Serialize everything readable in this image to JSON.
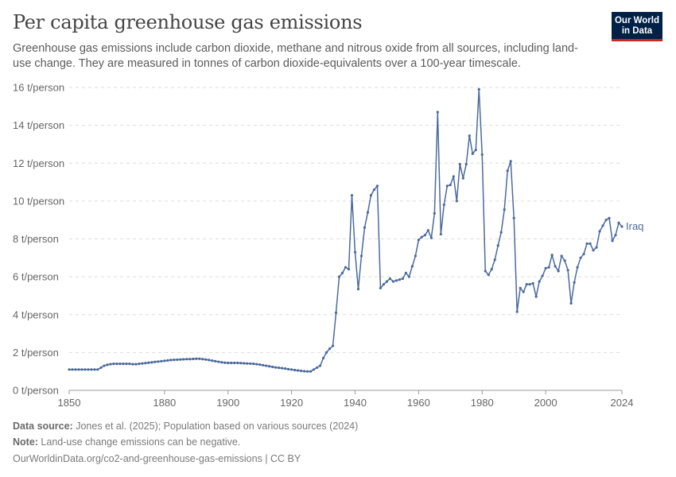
{
  "header": {
    "title": "Per capita greenhouse gas emissions",
    "subtitle": "Greenhouse gas emissions include carbon dioxide, methane and nitrous oxide from all sources, including land-use change. They are measured in tonnes of carbon dioxide-equivalents over a 100-year timescale."
  },
  "logo": {
    "line1": "Our World",
    "line2": "in Data",
    "bg": "#002147",
    "accent": "#ce261e"
  },
  "footer": {
    "source_label": "Data source:",
    "source_text": " Jones et al. (2025); Population based on various sources (2024)",
    "note_label": "Note:",
    "note_text": " Land-use change emissions can be negative.",
    "url": "OurWorldinData.org/co2-and-greenhouse-gas-emissions | CC BY"
  },
  "chart_data": {
    "type": "line",
    "xlabel": "",
    "ylabel": "",
    "xlim": [
      1850,
      2024
    ],
    "ylim": [
      0,
      16
    ],
    "x_ticks": [
      1850,
      1880,
      1900,
      1920,
      1940,
      1960,
      1980,
      2000,
      2024
    ],
    "y_ticks": [
      {
        "value": 0,
        "label": "0 t/person"
      },
      {
        "value": 2,
        "label": "2 t/person"
      },
      {
        "value": 4,
        "label": "4 t/person"
      },
      {
        "value": 6,
        "label": "6 t/person"
      },
      {
        "value": 8,
        "label": "8 t/person"
      },
      {
        "value": 10,
        "label": "10 t/person"
      },
      {
        "value": 12,
        "label": "12 t/person"
      },
      {
        "value": 14,
        "label": "14 t/person"
      },
      {
        "value": 16,
        "label": "16 t/person"
      }
    ],
    "grid": "horizontal dashed",
    "series": [
      {
        "name": "Iraq",
        "color": "#4c6a9c",
        "points": [
          [
            1850,
            1.1
          ],
          [
            1851,
            1.1
          ],
          [
            1852,
            1.1
          ],
          [
            1853,
            1.1
          ],
          [
            1854,
            1.1
          ],
          [
            1855,
            1.1
          ],
          [
            1856,
            1.1
          ],
          [
            1857,
            1.1
          ],
          [
            1858,
            1.1
          ],
          [
            1859,
            1.1
          ],
          [
            1860,
            1.2
          ],
          [
            1861,
            1.3
          ],
          [
            1862,
            1.35
          ],
          [
            1863,
            1.38
          ],
          [
            1864,
            1.4
          ],
          [
            1865,
            1.4
          ],
          [
            1866,
            1.4
          ],
          [
            1867,
            1.4
          ],
          [
            1868,
            1.4
          ],
          [
            1869,
            1.4
          ],
          [
            1870,
            1.38
          ],
          [
            1871,
            1.38
          ],
          [
            1872,
            1.4
          ],
          [
            1873,
            1.42
          ],
          [
            1874,
            1.44
          ],
          [
            1875,
            1.46
          ],
          [
            1876,
            1.48
          ],
          [
            1877,
            1.5
          ],
          [
            1878,
            1.52
          ],
          [
            1879,
            1.54
          ],
          [
            1880,
            1.56
          ],
          [
            1881,
            1.58
          ],
          [
            1882,
            1.6
          ],
          [
            1883,
            1.61
          ],
          [
            1884,
            1.62
          ],
          [
            1885,
            1.63
          ],
          [
            1886,
            1.64
          ],
          [
            1887,
            1.65
          ],
          [
            1888,
            1.65
          ],
          [
            1889,
            1.66
          ],
          [
            1890,
            1.67
          ],
          [
            1891,
            1.67
          ],
          [
            1892,
            1.65
          ],
          [
            1893,
            1.63
          ],
          [
            1894,
            1.6
          ],
          [
            1895,
            1.57
          ],
          [
            1896,
            1.54
          ],
          [
            1897,
            1.51
          ],
          [
            1898,
            1.48
          ],
          [
            1899,
            1.46
          ],
          [
            1900,
            1.45
          ],
          [
            1901,
            1.45
          ],
          [
            1902,
            1.45
          ],
          [
            1903,
            1.45
          ],
          [
            1904,
            1.44
          ],
          [
            1905,
            1.43
          ],
          [
            1906,
            1.42
          ],
          [
            1907,
            1.41
          ],
          [
            1908,
            1.4
          ],
          [
            1909,
            1.38
          ],
          [
            1910,
            1.36
          ],
          [
            1911,
            1.33
          ],
          [
            1912,
            1.3
          ],
          [
            1913,
            1.27
          ],
          [
            1914,
            1.24
          ],
          [
            1915,
            1.21
          ],
          [
            1916,
            1.19
          ],
          [
            1917,
            1.17
          ],
          [
            1918,
            1.15
          ],
          [
            1919,
            1.12
          ],
          [
            1920,
            1.1
          ],
          [
            1921,
            1.07
          ],
          [
            1922,
            1.05
          ],
          [
            1923,
            1.03
          ],
          [
            1924,
            1.01
          ],
          [
            1925,
            1.0
          ],
          [
            1926,
            1.0
          ],
          [
            1927,
            1.1
          ],
          [
            1928,
            1.2
          ],
          [
            1929,
            1.3
          ],
          [
            1930,
            1.7
          ],
          [
            1931,
            2.0
          ],
          [
            1932,
            2.2
          ],
          [
            1933,
            2.35
          ],
          [
            1934,
            4.1
          ],
          [
            1935,
            6.0
          ],
          [
            1936,
            6.2
          ],
          [
            1937,
            6.5
          ],
          [
            1938,
            6.4
          ],
          [
            1939,
            10.3
          ],
          [
            1940,
            7.3
          ],
          [
            1941,
            5.35
          ],
          [
            1942,
            7.1
          ],
          [
            1943,
            8.6
          ],
          [
            1944,
            9.4
          ],
          [
            1945,
            10.3
          ],
          [
            1946,
            10.6
          ],
          [
            1947,
            10.8
          ],
          [
            1948,
            5.4
          ],
          [
            1949,
            5.6
          ],
          [
            1950,
            5.75
          ],
          [
            1951,
            5.9
          ],
          [
            1952,
            5.75
          ],
          [
            1953,
            5.8
          ],
          [
            1954,
            5.85
          ],
          [
            1955,
            5.9
          ],
          [
            1956,
            6.2
          ],
          [
            1957,
            6.0
          ],
          [
            1958,
            6.55
          ],
          [
            1959,
            7.1
          ],
          [
            1960,
            7.95
          ],
          [
            1961,
            8.1
          ],
          [
            1962,
            8.2
          ],
          [
            1963,
            8.45
          ],
          [
            1964,
            8.05
          ],
          [
            1965,
            9.35
          ],
          [
            1966,
            14.7
          ],
          [
            1967,
            8.25
          ],
          [
            1968,
            9.8
          ],
          [
            1969,
            10.8
          ],
          [
            1970,
            10.85
          ],
          [
            1971,
            11.3
          ],
          [
            1972,
            10.0
          ],
          [
            1973,
            11.95
          ],
          [
            1974,
            11.2
          ],
          [
            1975,
            11.95
          ],
          [
            1976,
            13.45
          ],
          [
            1977,
            12.5
          ],
          [
            1978,
            12.7
          ],
          [
            1979,
            15.9
          ],
          [
            1980,
            12.45
          ],
          [
            1981,
            6.3
          ],
          [
            1982,
            6.1
          ],
          [
            1983,
            6.4
          ],
          [
            1984,
            6.9
          ],
          [
            1985,
            7.65
          ],
          [
            1986,
            8.35
          ],
          [
            1987,
            9.55
          ],
          [
            1988,
            11.6
          ],
          [
            1989,
            12.1
          ],
          [
            1990,
            9.1
          ],
          [
            1991,
            4.15
          ],
          [
            1992,
            5.4
          ],
          [
            1993,
            5.2
          ],
          [
            1994,
            5.6
          ],
          [
            1995,
            5.6
          ],
          [
            1996,
            5.65
          ],
          [
            1997,
            4.95
          ],
          [
            1998,
            5.75
          ],
          [
            1999,
            6.05
          ],
          [
            2000,
            6.45
          ],
          [
            2001,
            6.5
          ],
          [
            2002,
            7.15
          ],
          [
            2003,
            6.55
          ],
          [
            2004,
            6.3
          ],
          [
            2005,
            7.1
          ],
          [
            2006,
            6.85
          ],
          [
            2007,
            6.35
          ],
          [
            2008,
            4.6
          ],
          [
            2009,
            5.7
          ],
          [
            2010,
            6.5
          ],
          [
            2011,
            7.0
          ],
          [
            2012,
            7.2
          ],
          [
            2013,
            7.75
          ],
          [
            2014,
            7.75
          ],
          [
            2015,
            7.4
          ],
          [
            2016,
            7.55
          ],
          [
            2017,
            8.4
          ],
          [
            2018,
            8.7
          ],
          [
            2019,
            9.0
          ],
          [
            2020,
            9.1
          ],
          [
            2021,
            7.9
          ],
          [
            2022,
            8.2
          ],
          [
            2023,
            8.85
          ],
          [
            2024,
            8.65
          ]
        ]
      }
    ]
  }
}
